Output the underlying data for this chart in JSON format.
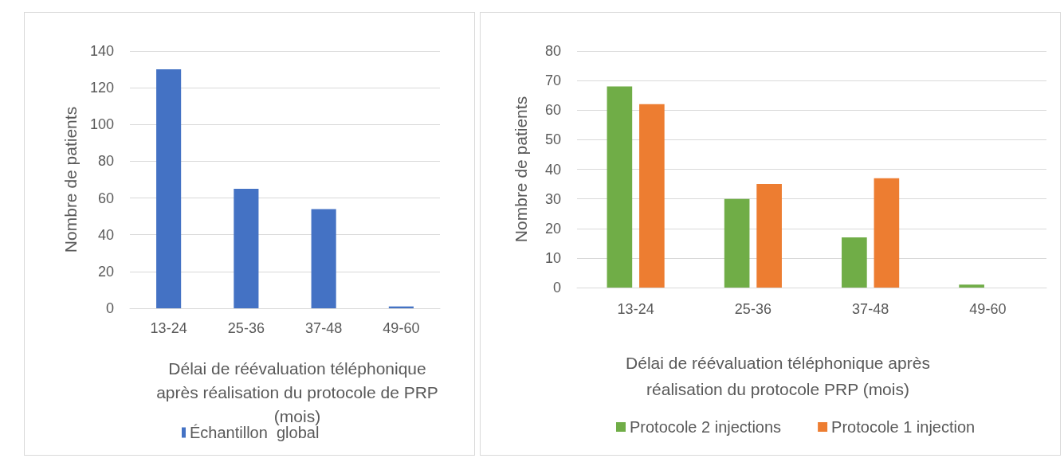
{
  "chart_data": [
    {
      "type": "bar",
      "categories": [
        "13-24",
        "25-36",
        "37-48",
        "49-60"
      ],
      "series": [
        {
          "name": "Échantillon  global",
          "color": "#4472c4",
          "values": [
            130,
            65,
            54,
            1
          ]
        }
      ],
      "xlabel": "Délai de réévaluation téléphonique après réalisation du protocole de PRP (mois)",
      "ylabel": "Nombre de patients",
      "ylim": [
        0,
        140
      ],
      "yticks": [
        0,
        20,
        40,
        60,
        80,
        100,
        120,
        140
      ],
      "grid": "y",
      "legend": "bottom"
    },
    {
      "type": "bar",
      "categories": [
        "13-24",
        "25-36",
        "37-48",
        "49-60"
      ],
      "series": [
        {
          "name": "Protocole 2 injections",
          "color": "#70ad47",
          "values": [
            68,
            30,
            17,
            1
          ]
        },
        {
          "name": "Protocole 1 injection",
          "color": "#ed7d31",
          "values": [
            62,
            35,
            37,
            0
          ]
        }
      ],
      "xlabel": "Délai de réévaluation téléphonique  après réalisation du protocole PRP (mois)",
      "ylabel": "Nombre de patients",
      "ylim": [
        0,
        80
      ],
      "yticks": [
        0,
        10,
        20,
        30,
        40,
        50,
        60,
        70,
        80
      ],
      "grid": "y",
      "legend": "bottom"
    }
  ]
}
